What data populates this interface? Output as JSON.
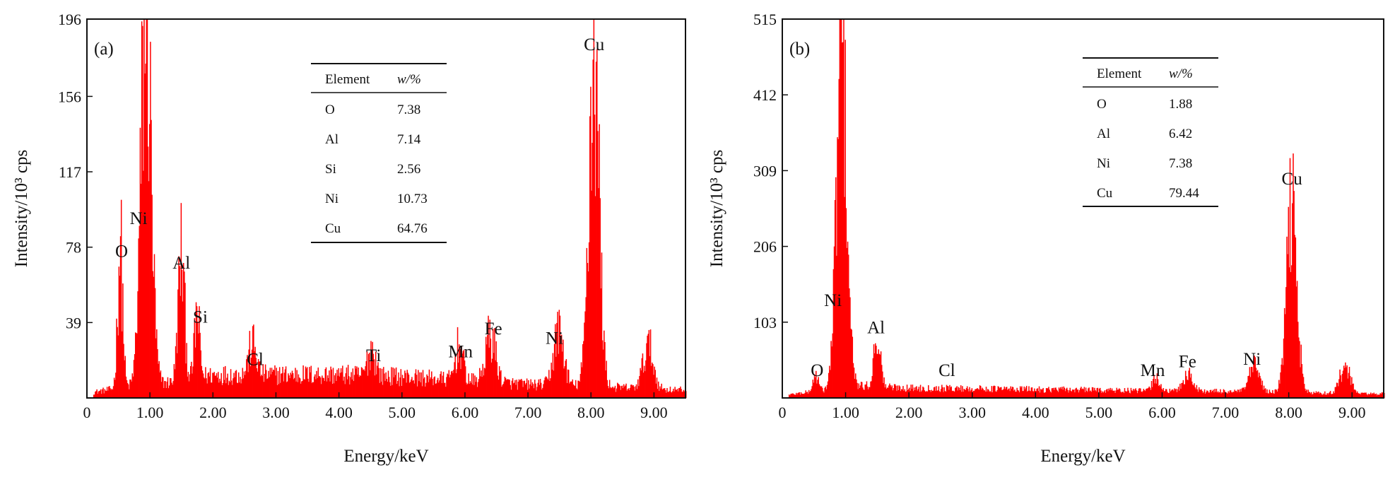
{
  "chart_data": [
    {
      "type": "bar",
      "panel_label": "(a)",
      "xlabel": "Energy/keV",
      "ylabel": "Intensity/10³ cps",
      "xlim": [
        0,
        9.5
      ],
      "ylim": [
        0,
        196
      ],
      "x_ticks": [
        0,
        1,
        2,
        3,
        4,
        5,
        6,
        7,
        8,
        9
      ],
      "x_tick_labels": [
        "0",
        "1.00",
        "2.00",
        "3.00",
        "4.00",
        "5.00",
        "6.00",
        "7.00",
        "8.00",
        "9.00"
      ],
      "y_ticks": [
        39,
        78,
        117,
        156,
        196
      ],
      "y_tick_labels": [
        "39",
        "78",
        "117",
        "156",
        "196"
      ],
      "bar_color": "#ff0000",
      "peaks": [
        {
          "x": 0.52,
          "y": 74,
          "width": 0.04
        },
        {
          "x": 0.93,
          "y": 192,
          "width": 0.08
        },
        {
          "x": 1.49,
          "y": 65,
          "width": 0.05
        },
        {
          "x": 1.74,
          "y": 33,
          "width": 0.04
        },
        {
          "x": 2.62,
          "y": 16,
          "width": 0.06
        },
        {
          "x": 4.51,
          "y": 14,
          "width": 0.06
        },
        {
          "x": 5.9,
          "y": 18,
          "width": 0.06
        },
        {
          "x": 6.4,
          "y": 24,
          "width": 0.08
        },
        {
          "x": 7.48,
          "y": 28,
          "width": 0.08
        },
        {
          "x": 8.04,
          "y": 172,
          "width": 0.08
        },
        {
          "x": 8.9,
          "y": 22,
          "width": 0.08
        }
      ],
      "background": [
        [
          0.1,
          3
        ],
        [
          0.5,
          5
        ],
        [
          1.3,
          8
        ],
        [
          2.0,
          12
        ],
        [
          3.0,
          12
        ],
        [
          4.0,
          12
        ],
        [
          5.0,
          11
        ],
        [
          6.0,
          9
        ],
        [
          7.0,
          7
        ],
        [
          8.0,
          6
        ],
        [
          9.5,
          4
        ]
      ],
      "peak_labels": [
        {
          "text": "O",
          "x": 0.55,
          "y": 73
        },
        {
          "text": "Ni",
          "x": 0.82,
          "y": 90
        },
        {
          "text": "Al",
          "x": 1.5,
          "y": 67
        },
        {
          "text": "Si",
          "x": 1.8,
          "y": 39
        },
        {
          "text": "Cl",
          "x": 2.67,
          "y": 17
        },
        {
          "text": "Ti",
          "x": 4.55,
          "y": 19
        },
        {
          "text": "Mn",
          "x": 5.93,
          "y": 21
        },
        {
          "text": "Fe",
          "x": 6.45,
          "y": 33
        },
        {
          "text": "Ni",
          "x": 7.42,
          "y": 28
        },
        {
          "text": "Cu",
          "x": 8.05,
          "y": 180
        }
      ],
      "table": {
        "headers": [
          "Element",
          "w/%"
        ],
        "rows": [
          [
            "O",
            "7.38"
          ],
          [
            "Al",
            "7.14"
          ],
          [
            "Si",
            "2.56"
          ],
          [
            "Ni",
            "10.73"
          ],
          [
            "Cu",
            "64.76"
          ]
        ]
      }
    },
    {
      "type": "bar",
      "panel_label": "(b)",
      "xlabel": "Energy/keV",
      "ylabel": "Intensity/10³ cps",
      "xlim": [
        0,
        9.5
      ],
      "ylim": [
        0,
        515
      ],
      "x_ticks": [
        0,
        1,
        2,
        3,
        4,
        5,
        6,
        7,
        8,
        9
      ],
      "x_tick_labels": [
        "0",
        "1.00",
        "2.00",
        "3.00",
        "4.00",
        "5.00",
        "6.00",
        "7.00",
        "8.00",
        "9.00"
      ],
      "y_ticks": [
        103,
        206,
        309,
        412,
        515
      ],
      "y_tick_labels": [
        "103",
        "206",
        "309",
        "412",
        "515"
      ],
      "bar_color": "#ff0000",
      "peaks": [
        {
          "x": 0.52,
          "y": 25,
          "width": 0.04
        },
        {
          "x": 0.93,
          "y": 510,
          "width": 0.08
        },
        {
          "x": 1.49,
          "y": 80,
          "width": 0.05
        },
        {
          "x": 5.9,
          "y": 20,
          "width": 0.06
        },
        {
          "x": 6.4,
          "y": 25,
          "width": 0.08
        },
        {
          "x": 7.45,
          "y": 38,
          "width": 0.08
        },
        {
          "x": 8.04,
          "y": 280,
          "width": 0.08
        },
        {
          "x": 8.88,
          "y": 40,
          "width": 0.08
        }
      ],
      "background": [
        [
          0.1,
          5
        ],
        [
          0.5,
          10
        ],
        [
          1.3,
          18
        ],
        [
          2.0,
          15
        ],
        [
          3.0,
          14
        ],
        [
          4.0,
          13
        ],
        [
          5.0,
          12
        ],
        [
          6.0,
          10
        ],
        [
          7.0,
          10
        ],
        [
          8.0,
          8
        ],
        [
          9.5,
          6
        ]
      ],
      "peak_labels": [
        {
          "text": "O",
          "x": 0.55,
          "y": 30
        },
        {
          "text": "Ni",
          "x": 0.8,
          "y": 125
        },
        {
          "text": "Al",
          "x": 1.48,
          "y": 88
        },
        {
          "text": "Cl",
          "x": 2.6,
          "y": 30
        },
        {
          "text": "Mn",
          "x": 5.85,
          "y": 30
        },
        {
          "text": "Fe",
          "x": 6.4,
          "y": 42
        },
        {
          "text": "Ni",
          "x": 7.42,
          "y": 45
        },
        {
          "text": "Cu",
          "x": 8.05,
          "y": 290
        }
      ],
      "table": {
        "headers": [
          "Element",
          "w/%"
        ],
        "rows": [
          [
            "O",
            "1.88"
          ],
          [
            "Al",
            "6.42"
          ],
          [
            "Ni",
            "7.38"
          ],
          [
            "Cu",
            "79.44"
          ]
        ]
      }
    }
  ]
}
